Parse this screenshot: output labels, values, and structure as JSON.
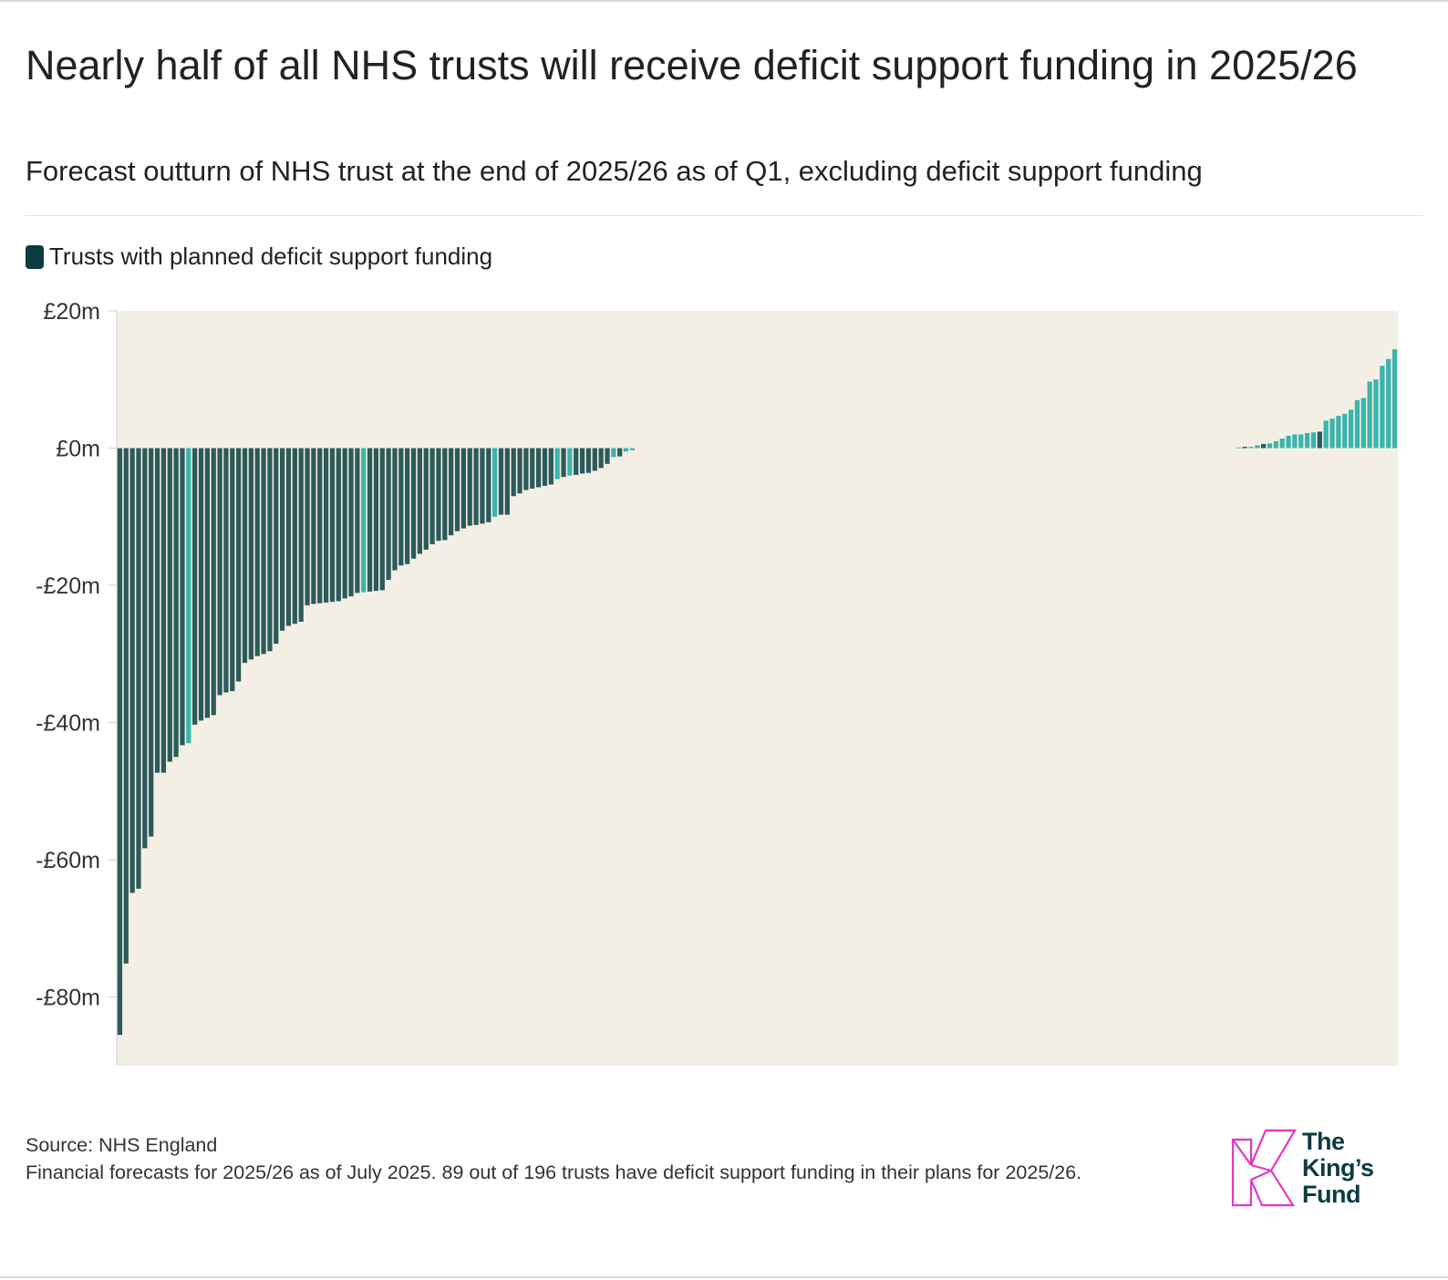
{
  "title": "Nearly half of all NHS trusts will receive deficit support funding in 2025/26",
  "subtitle": "Forecast outturn of NHS trust at the end of 2025/26 as of Q1, excluding deficit support funding",
  "legend": {
    "label": "Trusts with planned deficit support funding",
    "color": "#0b3c41"
  },
  "footer": {
    "source": "Source: NHS England",
    "note": "Financial forecasts for 2025/26 as of July 2025. 89 out of 196 trusts have deficit support funding in their plans for 2025/26."
  },
  "logo": {
    "line1": "The",
    "line2": "King’s",
    "line3": "Fund",
    "color": "#e535c9"
  },
  "colors": {
    "background": "#f4efe5",
    "with_dsf": "#2c5a5b",
    "without_dsf": "#3bb5ad",
    "text": "#222222"
  },
  "chart_data": {
    "type": "bar",
    "title": "Nearly half of all NHS trusts will receive deficit support funding in 2025/26",
    "subtitle": "Forecast outturn of NHS trust at the end of 2025/26 as of Q1, excluding deficit support funding",
    "xlabel": "",
    "ylabel": "",
    "ylim": [
      -90,
      20
    ],
    "yticks": [
      20,
      0,
      -20,
      -40,
      -60,
      -80
    ],
    "ytick_labels": [
      "£20m",
      "£0m",
      "-£20m",
      "-£40m",
      "-£60m",
      "-£80m"
    ],
    "grid": false,
    "legend_position": "top-left",
    "n_trusts": 196,
    "unit": "£m",
    "series": [
      {
        "name": "Trusts with planned deficit support funding",
        "values": [
          -85.5,
          -75.1,
          -64.8,
          -64.2,
          -58.3,
          -56.6,
          -47.3,
          -47.3,
          -45.7,
          -45.0,
          -43.3,
          -42.6,
          -40.3,
          -39.7,
          -39.3,
          -38.9,
          -36.0,
          -35.6,
          -35.4,
          -34.0,
          -31.3,
          -30.8,
          -30.3,
          -30.0,
          -29.6,
          -28.5,
          -26.6,
          -25.9,
          -25.6,
          -25.3,
          -22.9,
          -22.7,
          -22.6,
          -22.5,
          -22.4,
          -22.3,
          -21.9,
          -21.6,
          -21.1,
          -20.9,
          -20.8,
          -20.7,
          -20.6,
          -20.6,
          -19.2,
          -17.8,
          -17.1,
          -16.9,
          -16.1,
          -15.4,
          -14.8,
          -14.0,
          -13.5,
          -13.4,
          -12.7,
          -12.1,
          -11.7,
          -11.3,
          -11.2,
          -11.0,
          -10.8,
          -9.7,
          -9.7,
          -9.4,
          -7.0,
          -6.6,
          -6.1,
          -5.9,
          -5.7,
          -5.5,
          -5.3,
          -4.5,
          -4.2,
          -4.0,
          -3.9,
          -3.7,
          -3.6,
          -3.3,
          -2.9,
          -2.3,
          -1.6,
          -1.4,
          -1.2,
          -0.5,
          0.2,
          0.6,
          1.4,
          1.8,
          3.0
        ],
        "color": "#2c5a5b"
      },
      {
        "name": "",
        "values": [
          -43.0,
          -21.0,
          -10.0,
          -4.5,
          -4.0,
          -1.3,
          -0.5,
          -0.3,
          0.1,
          0.2,
          0.4,
          0.7,
          1.0,
          1.4,
          1.8,
          2.0,
          2.2,
          4.0,
          4.3,
          4.7,
          5.0,
          5.6,
          7.0,
          7.3,
          9.7,
          10.0,
          12.0,
          13.0,
          14.4
        ],
        "color": "#3bb5ad"
      }
    ],
    "bar_order": [
      {
        "v": -85.5,
        "s": 0
      },
      {
        "v": -75.1,
        "s": 0
      },
      {
        "v": -64.8,
        "s": 0
      },
      {
        "v": -64.2,
        "s": 0
      },
      {
        "v": -58.3,
        "s": 0
      },
      {
        "v": -56.6,
        "s": 0
      },
      {
        "v": -47.3,
        "s": 0
      },
      {
        "v": -47.3,
        "s": 0
      },
      {
        "v": -45.7,
        "s": 0
      },
      {
        "v": -45.0,
        "s": 0
      },
      {
        "v": -43.3,
        "s": 0
      },
      {
        "v": -43.0,
        "s": 1
      },
      {
        "v": -40.3,
        "s": 0
      },
      {
        "v": -39.7,
        "s": 0
      },
      {
        "v": -39.3,
        "s": 0
      },
      {
        "v": -38.9,
        "s": 0
      },
      {
        "v": -36.0,
        "s": 0
      },
      {
        "v": -35.6,
        "s": 0
      },
      {
        "v": -35.4,
        "s": 0
      },
      {
        "v": -34.0,
        "s": 0
      },
      {
        "v": -31.3,
        "s": 0
      },
      {
        "v": -30.8,
        "s": 0
      },
      {
        "v": -30.3,
        "s": 0
      },
      {
        "v": -30.0,
        "s": 0
      },
      {
        "v": -29.6,
        "s": 0
      },
      {
        "v": -28.5,
        "s": 0
      },
      {
        "v": -26.6,
        "s": 0
      },
      {
        "v": -25.9,
        "s": 0
      },
      {
        "v": -25.6,
        "s": 0
      },
      {
        "v": -25.3,
        "s": 0
      },
      {
        "v": -22.9,
        "s": 0
      },
      {
        "v": -22.7,
        "s": 0
      },
      {
        "v": -22.6,
        "s": 0
      },
      {
        "v": -22.5,
        "s": 0
      },
      {
        "v": -22.4,
        "s": 0
      },
      {
        "v": -22.3,
        "s": 0
      },
      {
        "v": -21.9,
        "s": 0
      },
      {
        "v": -21.6,
        "s": 0
      },
      {
        "v": -21.1,
        "s": 0
      },
      {
        "v": -21.0,
        "s": 1
      },
      {
        "v": -20.9,
        "s": 0
      },
      {
        "v": -20.8,
        "s": 0
      },
      {
        "v": -20.7,
        "s": 0
      },
      {
        "v": -19.2,
        "s": 0
      },
      {
        "v": -17.8,
        "s": 0
      },
      {
        "v": -17.1,
        "s": 0
      },
      {
        "v": -16.9,
        "s": 0
      },
      {
        "v": -16.1,
        "s": 0
      },
      {
        "v": -15.4,
        "s": 0
      },
      {
        "v": -14.8,
        "s": 0
      },
      {
        "v": -14.0,
        "s": 0
      },
      {
        "v": -13.5,
        "s": 0
      },
      {
        "v": -13.4,
        "s": 0
      },
      {
        "v": -12.7,
        "s": 0
      },
      {
        "v": -12.1,
        "s": 0
      },
      {
        "v": -11.7,
        "s": 0
      },
      {
        "v": -11.3,
        "s": 0
      },
      {
        "v": -11.2,
        "s": 0
      },
      {
        "v": -11.0,
        "s": 0
      },
      {
        "v": -10.8,
        "s": 0
      },
      {
        "v": -10.0,
        "s": 1
      },
      {
        "v": -9.7,
        "s": 0
      },
      {
        "v": -9.7,
        "s": 0
      },
      {
        "v": -7.0,
        "s": 0
      },
      {
        "v": -6.6,
        "s": 0
      },
      {
        "v": -6.1,
        "s": 0
      },
      {
        "v": -5.9,
        "s": 0
      },
      {
        "v": -5.7,
        "s": 0
      },
      {
        "v": -5.5,
        "s": 0
      },
      {
        "v": -5.3,
        "s": 0
      },
      {
        "v": -4.5,
        "s": 1
      },
      {
        "v": -4.2,
        "s": 0
      },
      {
        "v": -4.0,
        "s": 1
      },
      {
        "v": -3.9,
        "s": 0
      },
      {
        "v": -3.7,
        "s": 0
      },
      {
        "v": -3.6,
        "s": 0
      },
      {
        "v": -3.3,
        "s": 0
      },
      {
        "v": -2.9,
        "s": 0
      },
      {
        "v": -2.3,
        "s": 0
      },
      {
        "v": -1.3,
        "s": 1
      },
      {
        "v": -1.2,
        "s": 0
      },
      {
        "v": -0.5,
        "s": 1
      },
      {
        "v": -0.3,
        "s": 1
      }
    ],
    "zero_bars": 96,
    "positive_bars": [
      {
        "v": 0.1,
        "s": 1
      },
      {
        "v": 0.2,
        "s": 0
      },
      {
        "v": 0.2,
        "s": 1
      },
      {
        "v": 0.4,
        "s": 1
      },
      {
        "v": 0.6,
        "s": 0
      },
      {
        "v": 0.7,
        "s": 1
      },
      {
        "v": 1.0,
        "s": 1
      },
      {
        "v": 1.4,
        "s": 1
      },
      {
        "v": 1.8,
        "s": 1
      },
      {
        "v": 2.0,
        "s": 1
      },
      {
        "v": 2.0,
        "s": 1
      },
      {
        "v": 2.2,
        "s": 1
      },
      {
        "v": 2.3,
        "s": 1
      },
      {
        "v": 2.4,
        "s": 0
      },
      {
        "v": 4.0,
        "s": 1
      },
      {
        "v": 4.3,
        "s": 1
      },
      {
        "v": 4.7,
        "s": 1
      },
      {
        "v": 5.0,
        "s": 1
      },
      {
        "v": 5.6,
        "s": 1
      },
      {
        "v": 7.0,
        "s": 1
      },
      {
        "v": 7.3,
        "s": 1
      },
      {
        "v": 9.7,
        "s": 1
      },
      {
        "v": 10.0,
        "s": 1
      },
      {
        "v": 12.0,
        "s": 1
      },
      {
        "v": 13.0,
        "s": 1
      },
      {
        "v": 14.4,
        "s": 1
      }
    ]
  }
}
